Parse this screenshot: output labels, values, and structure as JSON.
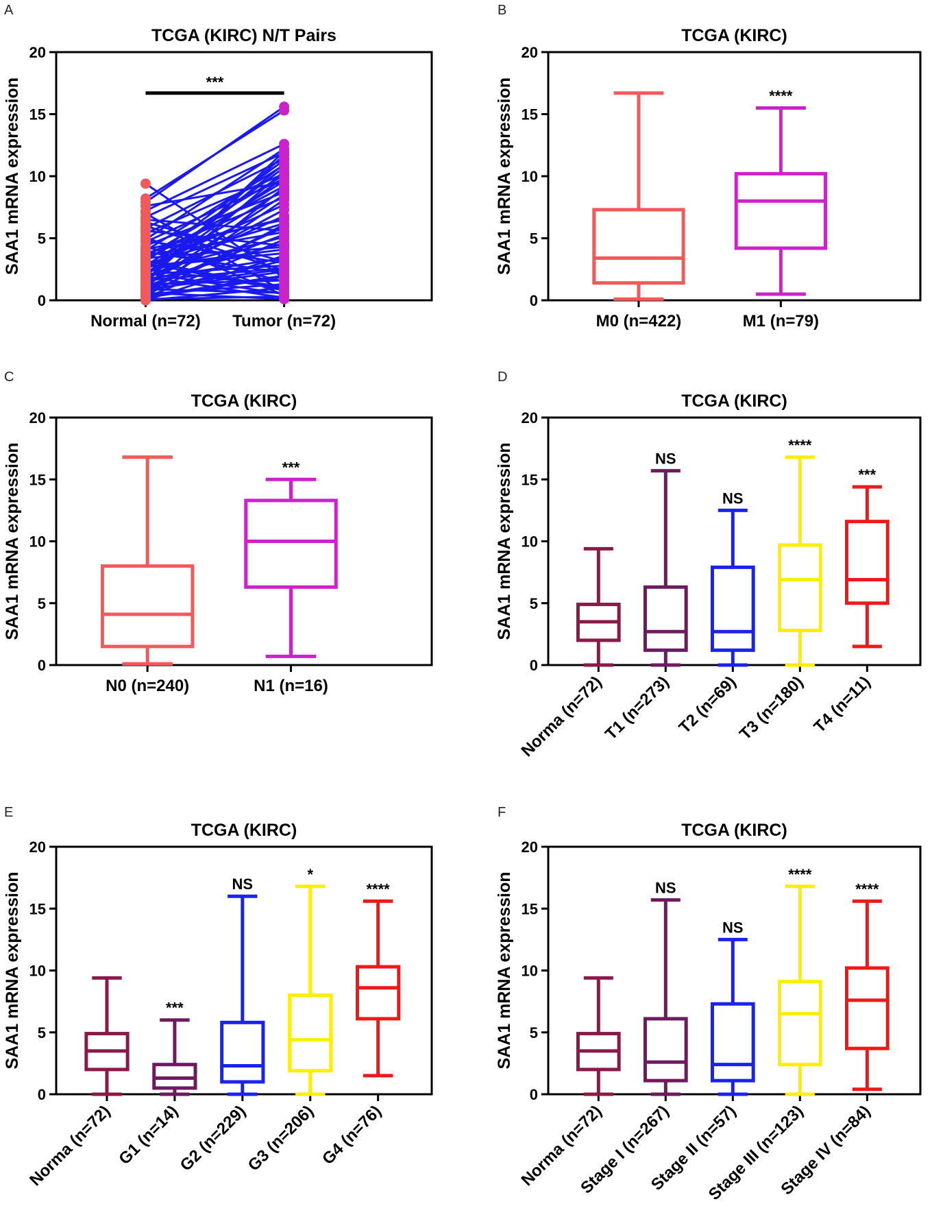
{
  "chart_data": [
    {
      "panel": "A",
      "type": "paired-scatter",
      "title": "TCGA (KIRC) N/T Pairs",
      "ylabel": "SAA1 mRNA expression",
      "ylim": [
        0,
        20
      ],
      "yticks": [
        "0",
        "5",
        "10",
        "15",
        "20"
      ],
      "categories": [
        "Normal (n=72)",
        "Tumor (n=72)"
      ],
      "colors": {
        "normal": "#f05a5a",
        "tumor": "#cc22cc",
        "line": "#1a1aee"
      },
      "significance": "***",
      "pairs": [
        [
          9.4,
          1.8
        ],
        [
          8.2,
          15.3
        ],
        [
          7.9,
          15.6
        ],
        [
          7.6,
          9.5
        ],
        [
          7.2,
          12.6
        ],
        [
          6.7,
          11.9
        ],
        [
          6.3,
          3.1
        ],
        [
          5.8,
          11.4
        ],
        [
          5.4,
          10.2
        ],
        [
          5.1,
          0.4
        ],
        [
          4.9,
          12.2
        ],
        [
          4.7,
          9.8
        ],
        [
          4.4,
          8.7
        ],
        [
          4.1,
          6.5
        ],
        [
          4.0,
          10.9
        ],
        [
          3.9,
          2.2
        ],
        [
          3.7,
          8.3
        ],
        [
          3.6,
          5.5
        ],
        [
          3.5,
          10.1
        ],
        [
          3.4,
          4.3
        ],
        [
          3.3,
          9.2
        ],
        [
          3.1,
          11.3
        ],
        [
          3.0,
          0.8
        ],
        [
          2.9,
          6.2
        ],
        [
          2.8,
          9.6
        ],
        [
          2.7,
          3.8
        ],
        [
          2.6,
          7.7
        ],
        [
          2.5,
          1.1
        ],
        [
          2.4,
          10.7
        ],
        [
          2.3,
          5.1
        ],
        [
          2.2,
          8.9
        ],
        [
          2.1,
          2.8
        ],
        [
          2.0,
          9.9
        ],
        [
          1.9,
          0.2
        ],
        [
          1.8,
          6.8
        ],
        [
          1.7,
          3.4
        ],
        [
          1.6,
          11.7
        ],
        [
          1.5,
          4.6
        ],
        [
          1.4,
          7.3
        ],
        [
          1.3,
          1.6
        ],
        [
          1.2,
          8.5
        ],
        [
          1.1,
          2.5
        ],
        [
          1.0,
          10.4
        ],
        [
          0.9,
          0.6
        ],
        [
          0.8,
          5.9
        ],
        [
          0.7,
          3.2
        ],
        [
          0.6,
          8.1
        ],
        [
          0.5,
          1.3
        ],
        [
          0.4,
          6.1
        ],
        [
          0.3,
          2.0
        ],
        [
          0.2,
          4.9
        ],
        [
          0.1,
          0.3
        ],
        [
          0.0,
          3.6
        ],
        [
          0.0,
          1.0
        ],
        [
          0.3,
          9.1
        ],
        [
          0.6,
          0.1
        ],
        [
          1.1,
          5.3
        ],
        [
          1.6,
          2.6
        ],
        [
          2.2,
          0.5
        ],
        [
          2.7,
          4.1
        ],
        [
          3.2,
          0.9
        ],
        [
          3.8,
          6.6
        ],
        [
          4.3,
          1.5
        ],
        [
          4.8,
          3.0
        ],
        [
          5.6,
          4.4
        ],
        [
          6.0,
          2.4
        ],
        [
          6.5,
          5.6
        ],
        [
          7.0,
          0.7
        ],
        [
          2.0,
          11.0
        ],
        [
          1.4,
          12.0
        ],
        [
          0.9,
          2.3
        ],
        [
          0.2,
          1.9
        ]
      ]
    },
    {
      "panel": "B",
      "type": "boxplot",
      "title": "TCGA (KIRC)",
      "ylabel": "SAA1 mRNA expression",
      "ylim": [
        0,
        20
      ],
      "yticks": [
        "0",
        "5",
        "10",
        "15",
        "20"
      ],
      "boxes": [
        {
          "label": "M0 (n=422)",
          "min": 0.1,
          "q1": 1.4,
          "median": 3.4,
          "q3": 7.3,
          "max": 16.7,
          "color": "#f05a5a",
          "sig": ""
        },
        {
          "label": "M1 (n=79)",
          "min": 0.5,
          "q1": 4.2,
          "median": 8.0,
          "q3": 10.2,
          "max": 15.5,
          "color": "#cc22cc",
          "sig": "****"
        }
      ]
    },
    {
      "panel": "C",
      "type": "boxplot",
      "title": "TCGA (KIRC)",
      "ylabel": "SAA1 mRNA expression",
      "ylim": [
        0,
        20
      ],
      "yticks": [
        "0",
        "5",
        "10",
        "15",
        "20"
      ],
      "boxes": [
        {
          "label": "N0 (n=240)",
          "min": 0.1,
          "q1": 1.5,
          "median": 4.1,
          "q3": 8.0,
          "max": 16.8,
          "color": "#f05a5a",
          "sig": ""
        },
        {
          "label": "N1 (n=16)",
          "min": 0.7,
          "q1": 6.3,
          "median": 10.0,
          "q3": 13.3,
          "max": 15.0,
          "color": "#cc22cc",
          "sig": "***"
        }
      ]
    },
    {
      "panel": "D",
      "type": "boxplot",
      "title": "TCGA (KIRC)",
      "ylabel": "SAA1 mRNA expression",
      "ylim": [
        0,
        20
      ],
      "yticks": [
        "0",
        "5",
        "10",
        "15",
        "20"
      ],
      "rotate_labels": true,
      "boxes": [
        {
          "label": "Norma (n=72)",
          "min": 0.0,
          "q1": 2.0,
          "median": 3.5,
          "q3": 4.9,
          "max": 9.4,
          "color": "#8b1a4a",
          "sig": ""
        },
        {
          "label": "T1 (n=273)",
          "min": 0.0,
          "q1": 1.2,
          "median": 2.7,
          "q3": 6.3,
          "max": 15.7,
          "color": "#6e1a5e",
          "sig": "NS"
        },
        {
          "label": "T2 (n=69)",
          "min": 0.0,
          "q1": 1.2,
          "median": 2.7,
          "q3": 7.9,
          "max": 12.5,
          "color": "#1a22ee",
          "sig": "NS"
        },
        {
          "label": "T3 (n=180)",
          "min": 0.0,
          "q1": 2.8,
          "median": 6.9,
          "q3": 9.7,
          "max": 16.8,
          "color": "#ffee00",
          "sig": "****"
        },
        {
          "label": "T4 (n=11)",
          "min": 1.5,
          "q1": 5.0,
          "median": 6.9,
          "q3": 11.6,
          "max": 14.4,
          "color": "#ee1a1a",
          "sig": "***"
        }
      ]
    },
    {
      "panel": "E",
      "type": "boxplot",
      "title": "TCGA (KIRC)",
      "ylabel": "SAA1 mRNA expression",
      "ylim": [
        0,
        20
      ],
      "yticks": [
        "0",
        "5",
        "10",
        "15",
        "20"
      ],
      "rotate_labels": true,
      "boxes": [
        {
          "label": "Norma (n=72)",
          "min": 0.0,
          "q1": 2.0,
          "median": 3.5,
          "q3": 4.9,
          "max": 9.4,
          "color": "#8b1a4a",
          "sig": ""
        },
        {
          "label": "G1 (n=14)",
          "min": 0.0,
          "q1": 0.5,
          "median": 1.3,
          "q3": 2.4,
          "max": 6.0,
          "color": "#6e1a5e",
          "sig": "***"
        },
        {
          "label": "G2 (n=229)",
          "min": 0.0,
          "q1": 1.0,
          "median": 2.3,
          "q3": 5.8,
          "max": 16.0,
          "color": "#1a22ee",
          "sig": "NS"
        },
        {
          "label": "G3 (n=206)",
          "min": 0.0,
          "q1": 1.9,
          "median": 4.4,
          "q3": 8.0,
          "max": 16.8,
          "color": "#ffee00",
          "sig": "*"
        },
        {
          "label": "G4 (n=76)",
          "min": 1.5,
          "q1": 6.1,
          "median": 8.6,
          "q3": 10.3,
          "max": 15.6,
          "color": "#ee1a1a",
          "sig": "****"
        }
      ]
    },
    {
      "panel": "F",
      "type": "boxplot",
      "title": "TCGA (KIRC)",
      "ylabel": "SAA1 mRNA expression",
      "ylim": [
        0,
        20
      ],
      "yticks": [
        "0",
        "5",
        "10",
        "15",
        "20"
      ],
      "rotate_labels": true,
      "boxes": [
        {
          "label": "Norma (n=72)",
          "min": 0.0,
          "q1": 2.0,
          "median": 3.5,
          "q3": 4.9,
          "max": 9.4,
          "color": "#8b1a4a",
          "sig": ""
        },
        {
          "label": "Stage I (n=267)",
          "min": 0.0,
          "q1": 1.1,
          "median": 2.6,
          "q3": 6.1,
          "max": 15.7,
          "color": "#6e1a5e",
          "sig": "NS"
        },
        {
          "label": "Stage II (n=57)",
          "min": 0.0,
          "q1": 1.1,
          "median": 2.4,
          "q3": 7.3,
          "max": 12.5,
          "color": "#1a22ee",
          "sig": "NS"
        },
        {
          "label": "Stage III (n=123)",
          "min": 0.0,
          "q1": 2.4,
          "median": 6.5,
          "q3": 9.1,
          "max": 16.8,
          "color": "#ffee00",
          "sig": "****"
        },
        {
          "label": "Stage IV (n=84)",
          "min": 0.4,
          "q1": 3.7,
          "median": 7.6,
          "q3": 10.2,
          "max": 15.6,
          "color": "#ee1a1a",
          "sig": "****"
        }
      ]
    }
  ]
}
